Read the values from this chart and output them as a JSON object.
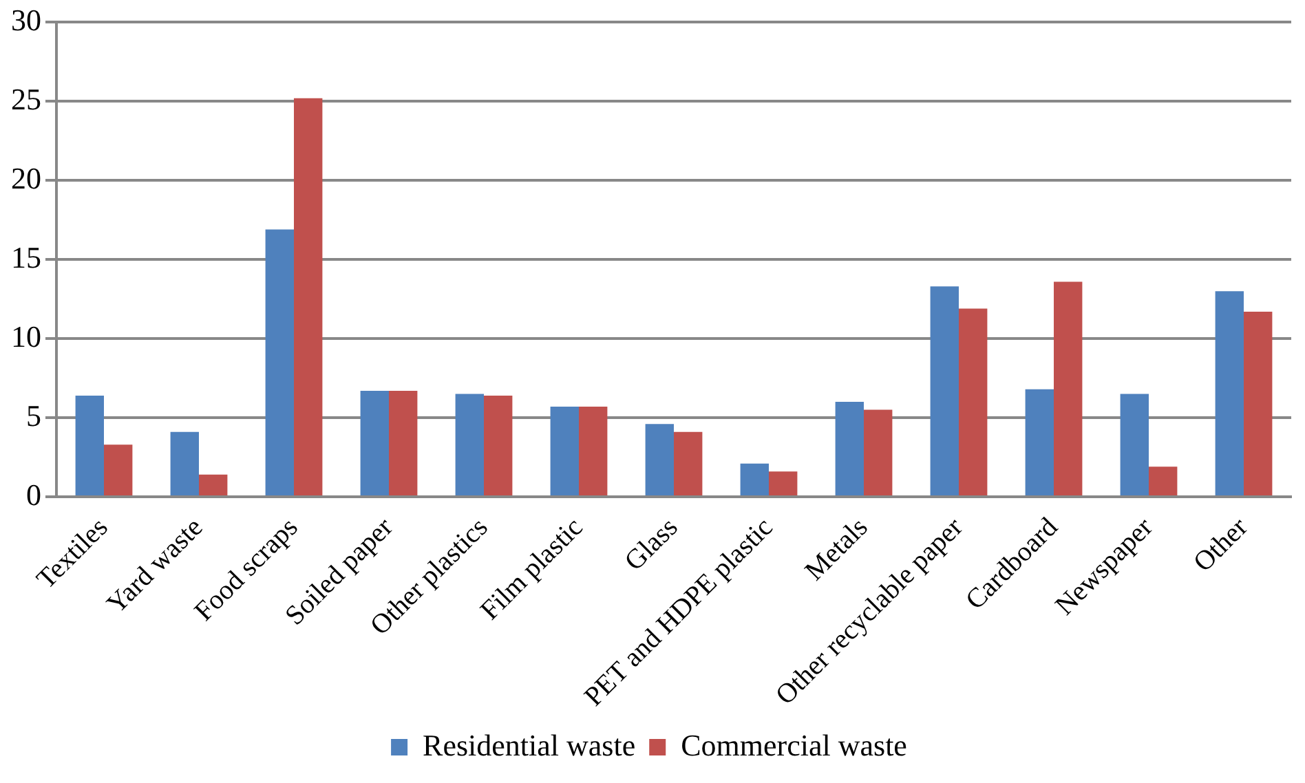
{
  "chart_data": {
    "type": "bar",
    "categories": [
      "Textiles",
      "Yard waste",
      "Food scraps",
      "Soiled paper",
      "Other plastics",
      "Film plastic",
      "Glass",
      "PET and HDPE plastic",
      "Metals",
      "Other recyclable paper",
      "Cardboard",
      "Newspaper",
      "Other"
    ],
    "series": [
      {
        "name": "Residential waste",
        "color": "#4f81bd",
        "values": [
          6.4,
          4.1,
          16.9,
          6.7,
          6.5,
          5.7,
          4.6,
          2.1,
          6.0,
          13.3,
          6.8,
          6.5,
          13.0
        ]
      },
      {
        "name": "Commercial waste",
        "color": "#c0504d",
        "values": [
          3.3,
          1.4,
          25.2,
          6.7,
          6.4,
          5.7,
          4.1,
          1.6,
          5.5,
          11.9,
          13.6,
          1.9,
          11.7
        ]
      }
    ],
    "ylim": [
      0,
      30
    ],
    "yticks": [
      0,
      5,
      10,
      15,
      20,
      25,
      30
    ],
    "grid": "y",
    "legend": "bottom"
  }
}
